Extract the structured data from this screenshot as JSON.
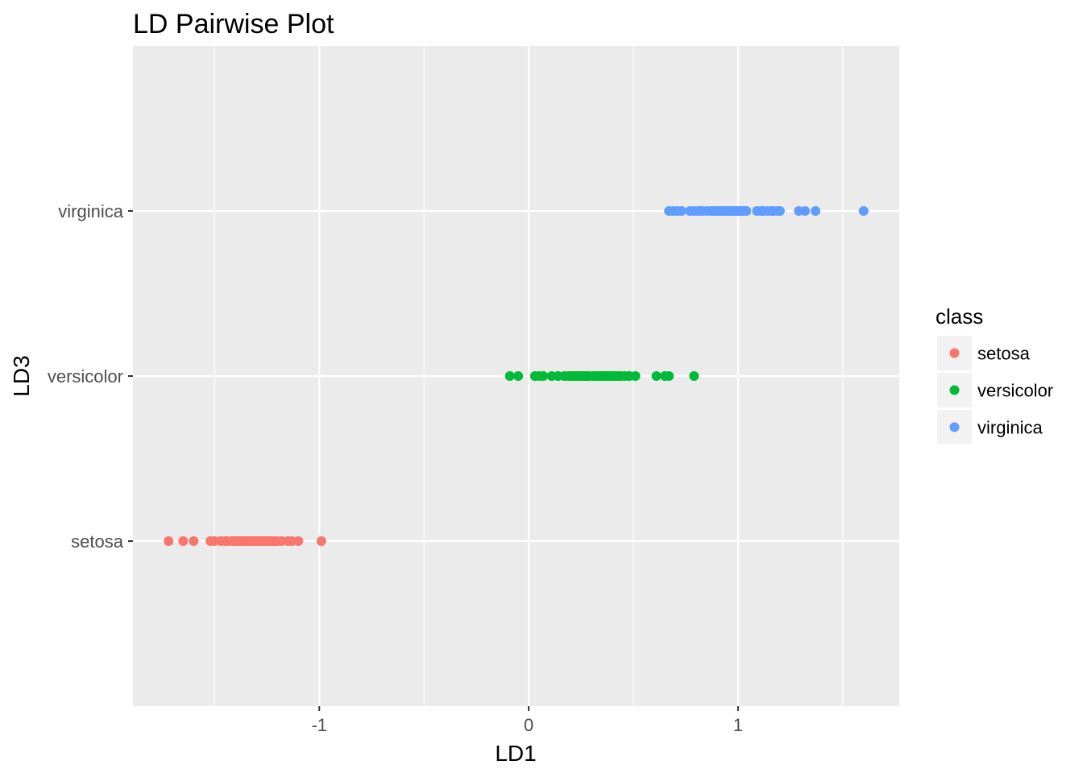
{
  "chart_data": {
    "type": "scatter",
    "title": "LD Pairwise Plot",
    "xlabel": "LD1",
    "ylabel": "LD3",
    "xlim": [
      -1.89,
      1.77
    ],
    "x_ticks": [
      -1,
      0,
      1
    ],
    "x_tick_labels": [
      "-1",
      "0",
      "1"
    ],
    "y_categories": [
      "setosa",
      "versicolor",
      "virginica"
    ],
    "grid": true,
    "legend": {
      "title": "class",
      "position": "right",
      "entries": [
        "setosa",
        "versicolor",
        "virginica"
      ]
    },
    "series": [
      {
        "name": "setosa",
        "color": "#F8766D",
        "y": "setosa",
        "x": [
          -1.72,
          -1.65,
          -1.6,
          -1.52,
          -1.5,
          -1.47,
          -1.45,
          -1.44,
          -1.42,
          -1.41,
          -1.4,
          -1.39,
          -1.38,
          -1.37,
          -1.36,
          -1.35,
          -1.34,
          -1.33,
          -1.32,
          -1.31,
          -1.3,
          -1.29,
          -1.28,
          -1.27,
          -1.26,
          -1.25,
          -1.24,
          -1.23,
          -1.22,
          -1.21,
          -1.2,
          -1.18,
          -1.15,
          -1.13,
          -1.1,
          -0.99
        ]
      },
      {
        "name": "versicolor",
        "color": "#00BA38",
        "y": "versicolor",
        "x": [
          -0.09,
          -0.05,
          0.03,
          0.05,
          0.07,
          0.11,
          0.14,
          0.17,
          0.19,
          0.2,
          0.21,
          0.22,
          0.23,
          0.24,
          0.25,
          0.26,
          0.27,
          0.28,
          0.29,
          0.31,
          0.32,
          0.33,
          0.34,
          0.35,
          0.36,
          0.37,
          0.38,
          0.39,
          0.4,
          0.41,
          0.42,
          0.43,
          0.44,
          0.46,
          0.48,
          0.51,
          0.61,
          0.65,
          0.67,
          0.79
        ]
      },
      {
        "name": "virginica",
        "color": "#619CFF",
        "y": "virginica",
        "x": [
          0.67,
          0.69,
          0.71,
          0.73,
          0.77,
          0.79,
          0.81,
          0.82,
          0.83,
          0.85,
          0.87,
          0.88,
          0.89,
          0.9,
          0.91,
          0.92,
          0.93,
          0.94,
          0.95,
          0.96,
          0.97,
          0.98,
          0.99,
          1.0,
          1.01,
          1.02,
          1.03,
          1.04,
          1.09,
          1.11,
          1.12,
          1.14,
          1.16,
          1.17,
          1.19,
          1.2,
          1.29,
          1.32,
          1.37,
          1.6
        ]
      }
    ]
  }
}
